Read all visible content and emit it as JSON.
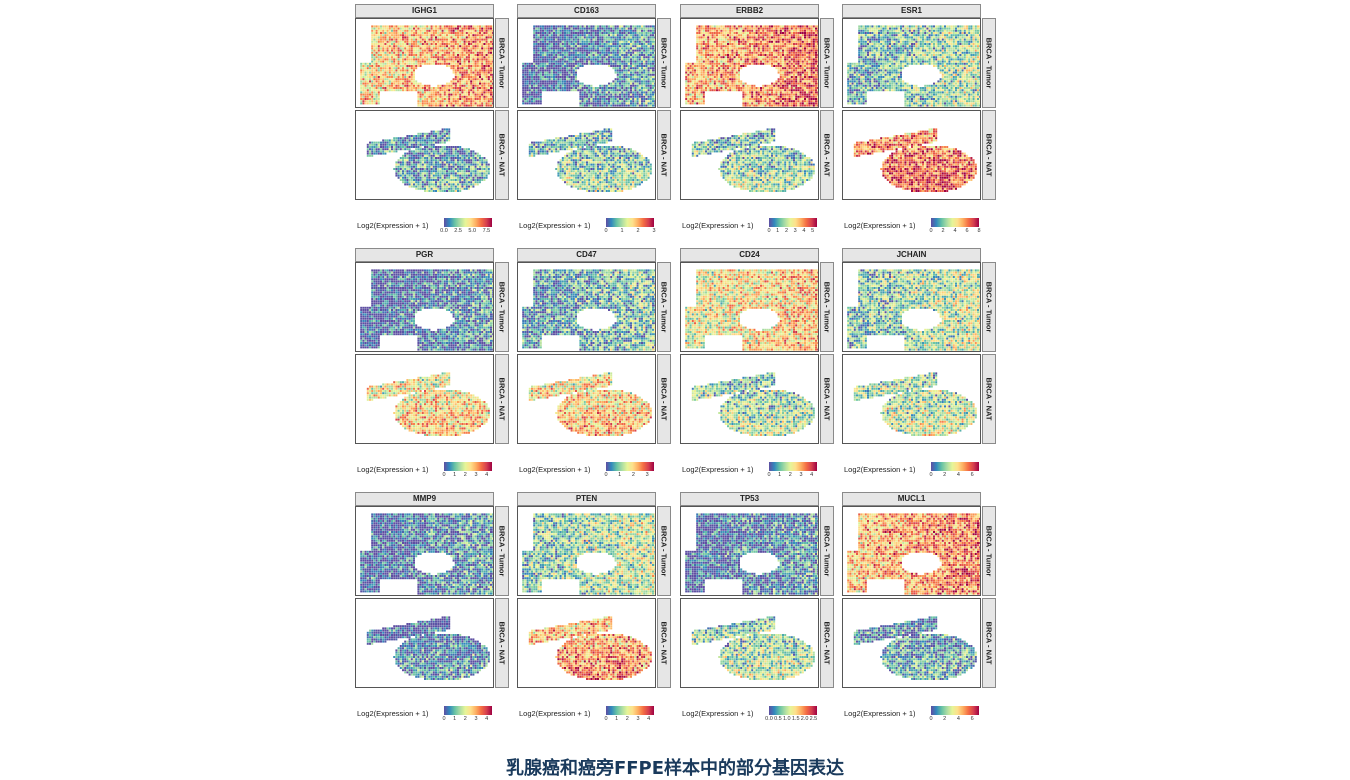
{
  "caption": "乳腺癌和癌旁FFPE样本中的部分基因表达",
  "facet_labels": {
    "tumor": "BRCA - Tumor",
    "nat": "BRCA - NAT"
  },
  "colors": [
    "#5e4fa2",
    "#3288bd",
    "#66c2a5",
    "#abdda4",
    "#e6f598",
    "#fee08b",
    "#fdae61",
    "#f46d43",
    "#d53e4f",
    "#9e0142"
  ],
  "chart_data": [
    {
      "type": "heatmap",
      "title": "IGHG1",
      "legend_title": "Log2(Expression + 1)",
      "scale_max": 8.5,
      "ticks": [
        "0.0",
        "2.5",
        "5.0",
        "7.5"
      ],
      "tick_values": [
        0,
        2.5,
        5,
        7.5
      ],
      "tumor_level": 0.6,
      "nat_level": 0.12
    },
    {
      "type": "heatmap",
      "title": "CD163",
      "legend_title": "Log2(Expression + 1)",
      "scale_max": 3,
      "ticks": [
        "0",
        "1",
        "2",
        "3"
      ],
      "tick_values": [
        0,
        1,
        2,
        3
      ],
      "tumor_level": 0.06,
      "nat_level": 0.22
    },
    {
      "type": "heatmap",
      "title": "ERBB2",
      "legend_title": "Log2(Expression + 1)",
      "scale_max": 5.5,
      "ticks": [
        "0",
        "1",
        "2",
        "3",
        "4",
        "5"
      ],
      "tick_values": [
        0,
        1,
        2,
        3,
        4,
        5
      ],
      "tumor_level": 0.68,
      "nat_level": 0.25
    },
    {
      "type": "heatmap",
      "title": "ESR1",
      "legend_title": "Log2(Expression + 1)",
      "scale_max": 8,
      "ticks": [
        "0",
        "2",
        "4",
        "6",
        "8"
      ],
      "tick_values": [
        0,
        2,
        4,
        6,
        8
      ],
      "tumor_level": 0.25,
      "nat_level": 0.72
    },
    {
      "type": "heatmap",
      "title": "PGR",
      "legend_title": "Log2(Expression + 1)",
      "scale_max": 4.5,
      "ticks": [
        "0",
        "1",
        "2",
        "3",
        "4"
      ],
      "tick_values": [
        0,
        1,
        2,
        3,
        4
      ],
      "tumor_level": 0.04,
      "nat_level": 0.5
    },
    {
      "type": "heatmap",
      "title": "CD47",
      "legend_title": "Log2(Expression + 1)",
      "scale_max": 3.5,
      "ticks": [
        "0",
        "1",
        "2",
        "3"
      ],
      "tick_values": [
        0,
        1,
        2,
        3
      ],
      "tumor_level": 0.18,
      "nat_level": 0.52
    },
    {
      "type": "heatmap",
      "title": "CD24",
      "legend_title": "Log2(Expression + 1)",
      "scale_max": 4.5,
      "ticks": [
        "0",
        "1",
        "2",
        "3",
        "4"
      ],
      "tick_values": [
        0,
        1,
        2,
        3,
        4
      ],
      "tumor_level": 0.5,
      "nat_level": 0.28
    },
    {
      "type": "heatmap",
      "title": "JCHAIN",
      "legend_title": "Log2(Expression + 1)",
      "scale_max": 7,
      "ticks": [
        "0",
        "2",
        "4",
        "6"
      ],
      "tick_values": [
        0,
        2,
        4,
        6
      ],
      "tumor_level": 0.3,
      "nat_level": 0.32
    },
    {
      "type": "heatmap",
      "title": "MMP9",
      "legend_title": "Log2(Expression + 1)",
      "scale_max": 4.5,
      "ticks": [
        "0",
        "1",
        "2",
        "3",
        "4"
      ],
      "tick_values": [
        0,
        1,
        2,
        3,
        4
      ],
      "tumor_level": 0.05,
      "nat_level": 0.03
    },
    {
      "type": "heatmap",
      "title": "PTEN",
      "legend_title": "Log2(Expression + 1)",
      "scale_max": 4.5,
      "ticks": [
        "0",
        "1",
        "2",
        "3",
        "4"
      ],
      "tick_values": [
        0,
        1,
        2,
        3,
        4
      ],
      "tumor_level": 0.3,
      "nat_level": 0.62
    },
    {
      "type": "heatmap",
      "title": "TP53",
      "legend_title": "Log2(Expression + 1)",
      "scale_max": 2.7,
      "ticks": [
        "0.0",
        "0.5",
        "1.0",
        "1.5",
        "2.0",
        "2.5"
      ],
      "tick_values": [
        0,
        0.5,
        1,
        1.5,
        2,
        2.5
      ],
      "tumor_level": 0.05,
      "nat_level": 0.28
    },
    {
      "type": "heatmap",
      "title": "MUCL1",
      "legend_title": "Log2(Expression + 1)",
      "scale_max": 7,
      "ticks": [
        "0",
        "2",
        "4",
        "6"
      ],
      "tick_values": [
        0,
        2,
        4,
        6
      ],
      "tumor_level": 0.65,
      "nat_level": 0.12
    }
  ]
}
